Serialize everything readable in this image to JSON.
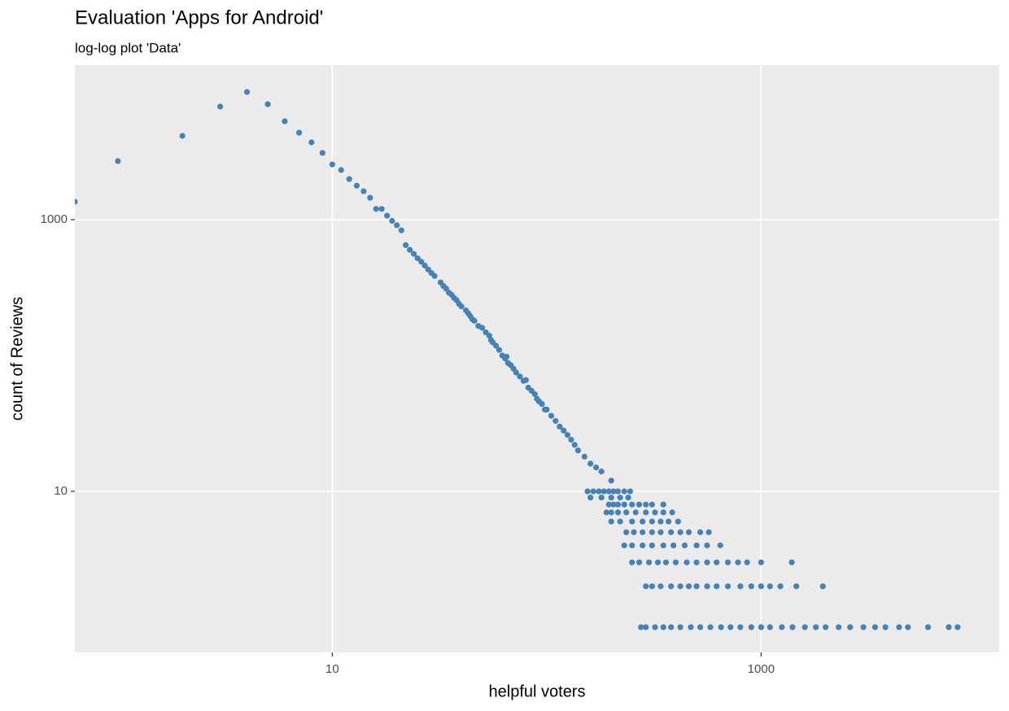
{
  "chart_data": {
    "type": "scatter",
    "title": "Evaluation 'Apps for Android'",
    "subtitle": "log-log plot 'Data'",
    "x_label": "helpful voters",
    "y_label": "count of Reviews",
    "log_x": true,
    "log_y": true,
    "grid": true,
    "color": "#4682b4",
    "xlim": [
      0.63,
      12900
    ],
    "ylim": [
      0.652,
      13740
    ],
    "xticks": [
      10,
      1000
    ],
    "yticks": [
      10,
      1000
    ],
    "x": [
      0.63,
      1,
      2,
      3,
      4,
      5,
      6,
      7,
      8,
      9,
      10,
      11,
      12,
      13,
      14,
      15,
      16,
      17,
      18,
      19,
      20,
      21,
      22,
      23,
      24,
      25,
      26,
      27,
      28,
      29,
      30,
      32,
      33,
      34,
      35,
      36,
      37,
      38,
      39,
      40,
      42,
      43,
      44,
      45,
      46,
      48,
      50,
      52,
      54,
      55,
      56,
      58,
      60,
      62,
      64,
      65,
      66,
      68,
      70,
      72,
      75,
      78,
      80,
      82,
      85,
      88,
      90,
      92,
      95,
      98,
      100,
      105,
      110,
      115,
      120,
      125,
      130,
      135,
      140,
      150,
      160,
      170,
      180,
      200,
      155,
      165,
      175,
      185,
      195,
      205,
      215,
      230,
      245,
      160,
      180,
      200,
      220,
      240,
      195,
      205,
      215,
      230,
      250,
      270,
      290,
      310,
      350,
      190,
      200,
      215,
      235,
      260,
      290,
      320,
      350,
      385,
      200,
      220,
      250,
      280,
      310,
      340,
      370,
      410,
      235,
      255,
      280,
      310,
      340,
      380,
      420,
      460,
      520,
      570,
      230,
      250,
      280,
      310,
      350,
      390,
      440,
      500,
      560,
      645,
      250,
      270,
      300,
      330,
      360,
      400,
      450,
      500,
      560,
      620,
      700,
      780,
      860,
      1000,
      1390,
      290,
      310,
      340,
      380,
      420,
      460,
      500,
      560,
      620,
      700,
      800,
      900,
      1000,
      1100,
      1230,
      1460,
      1940,
      275,
      290,
      320,
      350,
      380,
      420,
      470,
      520,
      580,
      650,
      720,
      800,
      900,
      1000,
      1100,
      1250,
      1400,
      1600,
      1800,
      2000,
      2300,
      2600,
      3000,
      3400,
      3800,
      4400,
      4840,
      6000,
      7500,
      8250
    ],
    "values": [
      1355,
      2700,
      4140,
      6800,
      8710,
      7080,
      5300,
      4370,
      3710,
      3100,
      2550,
      2320,
      1990,
      1780,
      1620,
      1450,
      1200,
      1200,
      1070,
      980,
      910,
      835,
      650,
      600,
      560,
      520,
      490,
      460,
      430,
      405,
      385,
      345,
      325,
      310,
      290,
      280,
      265,
      255,
      240,
      230,
      215,
      205,
      195,
      185,
      180,
      165,
      160,
      148,
      140,
      130,
      125,
      118,
      110,
      100,
      95,
      98,
      88,
      85,
      80,
      75,
      70,
      65,
      66,
      58,
      55,
      52,
      48,
      46,
      44,
      40,
      40,
      36,
      33,
      30,
      28,
      26,
      24,
      22,
      20,
      18,
      16,
      15,
      14,
      12,
      10,
      10,
      10,
      10,
      10,
      10,
      10,
      10,
      10,
      9,
      9,
      9,
      9,
      9,
      8,
      8,
      8,
      8,
      8,
      8,
      8,
      8,
      8,
      7,
      7,
      7,
      7,
      7,
      7,
      7,
      7,
      7,
      6,
      6,
      6,
      6,
      6,
      6,
      6,
      6,
      5,
      5,
      5,
      5,
      5,
      5,
      5,
      5,
      5,
      5,
      4,
      4,
      4,
      4,
      4,
      4,
      4,
      4,
      4,
      4,
      3,
      3,
      3,
      3,
      3,
      3,
      3,
      3,
      3,
      3,
      3,
      3,
      3,
      3,
      3,
      2,
      2,
      2,
      2,
      2,
      2,
      2,
      2,
      2,
      2,
      2,
      2,
      2,
      2,
      2,
      2,
      2,
      1,
      1,
      1,
      1,
      1,
      1,
      1,
      1,
      1,
      1,
      1,
      1,
      1,
      1,
      1,
      1,
      1,
      1,
      1,
      1,
      1,
      1,
      1,
      1,
      1,
      1,
      1,
      1,
      1,
      1
    ]
  }
}
